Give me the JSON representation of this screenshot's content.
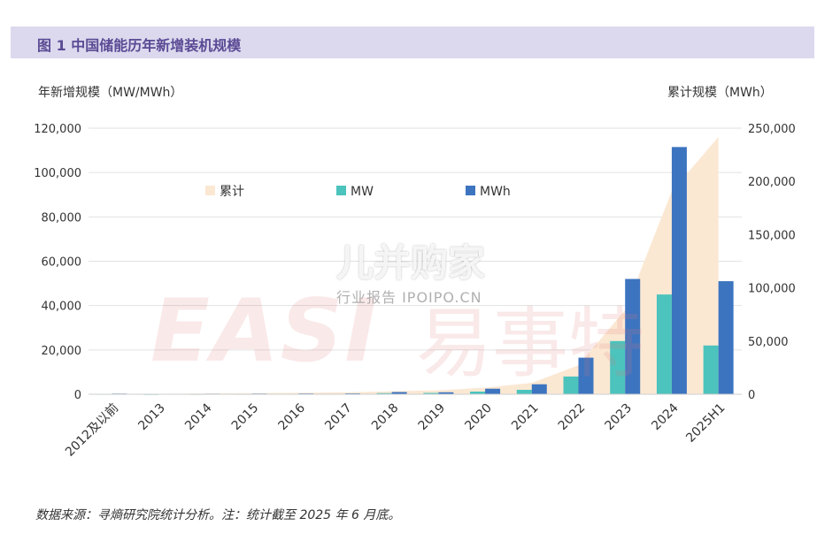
{
  "header": {
    "title": "图 1 中国储能历年新增装机规模"
  },
  "axis_titles": {
    "left": "年新增规模（MW/MWh）",
    "right": "累计规模（MWh）"
  },
  "watermarks": {
    "brand": "儿并购家",
    "brand_sub": "行业报告 IPOIPO.CN",
    "logo_latin": "EASI",
    "logo_cn": "易事特"
  },
  "source_note": "数据来源：寻熵研究院统计分析。注：统计截至 2025 年 6 月底。",
  "colors": {
    "header_bg": "#dcd9ee",
    "header_text": "#5b4a94",
    "cumulative": "#fbe8d3",
    "mw": "#4cc3bd",
    "mwh": "#3d74c0"
  },
  "chart_data": {
    "type": "bar",
    "categories": [
      "2012及以前",
      "2013",
      "2014",
      "2015",
      "2016",
      "2017",
      "2018",
      "2019",
      "2020",
      "2021",
      "2022",
      "2023",
      "2024",
      "2025H1"
    ],
    "series": [
      {
        "name": "MW",
        "type": "bar",
        "axis": "left",
        "values": [
          100,
          50,
          80,
          100,
          150,
          150,
          500,
          600,
          1200,
          2000,
          8000,
          24000,
          45000,
          22000
        ]
      },
      {
        "name": "MWh",
        "type": "bar",
        "axis": "left",
        "values": [
          300,
          150,
          250,
          300,
          350,
          400,
          1000,
          900,
          2500,
          4500,
          16500,
          52000,
          111500,
          51000
        ]
      },
      {
        "name": "累计",
        "type": "area",
        "axis": "right",
        "values": [
          300,
          450,
          700,
          1000,
          1400,
          1800,
          2800,
          3700,
          6200,
          10700,
          27200,
          79200,
          190700,
          241700
        ]
      }
    ],
    "legend": {
      "position": "top-left",
      "entries": [
        "累计",
        "MW",
        "MWh"
      ]
    },
    "y_left": {
      "ylim": [
        0,
        120000
      ],
      "ticks": [
        "0",
        "20,000",
        "40,000",
        "60,000",
        "80,000",
        "100,000",
        "120,000"
      ]
    },
    "y_right": {
      "ylim": [
        0,
        250000
      ],
      "ticks": [
        "0",
        "50,000",
        "100,000",
        "150,000",
        "200,000",
        "250,000"
      ]
    },
    "grid": true
  }
}
